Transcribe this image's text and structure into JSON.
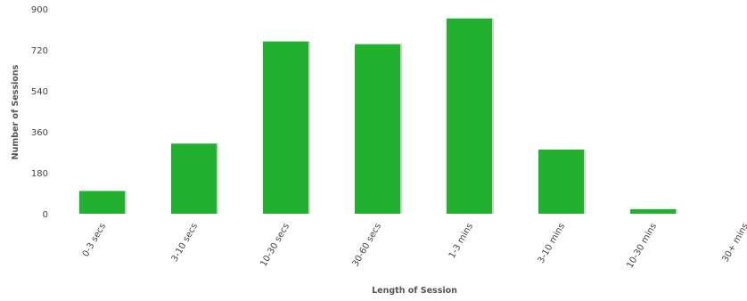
{
  "chart_data": {
    "type": "bar",
    "title": "",
    "xlabel": "Length of Session",
    "ylabel": "Number of Sessions",
    "categories": [
      "0-3 secs",
      "3-10 secs",
      "10-30 secs",
      "30-60 secs",
      "1-3 mins",
      "3-10 mins",
      "10-30 mins",
      "30+ mins"
    ],
    "values": [
      100,
      308,
      757,
      745,
      858,
      282,
      20,
      0
    ],
    "ylim": [
      0,
      900
    ],
    "yticks": [
      "0",
      "180",
      "360",
      "540",
      "720",
      "900"
    ],
    "grid": false,
    "legend": "none",
    "colors": {
      "bar": "#22b12e",
      "bar_shadow": "#d0d0d0",
      "tick_text": "#444444",
      "axis_title": "#555555"
    }
  }
}
